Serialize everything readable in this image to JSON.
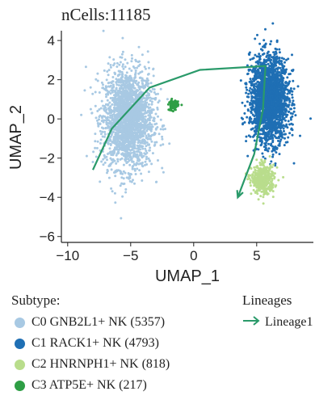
{
  "title": "nCells:11185",
  "chart_data": {
    "type": "scatter",
    "title": "nCells:11185",
    "xlabel": "UMAP_1",
    "ylabel": "UMAP_2",
    "xlim": [
      -10.5,
      9.5
    ],
    "ylim": [
      -6.3,
      4.5
    ],
    "xticks": [
      -10,
      -5,
      0,
      5
    ],
    "yticks": [
      -6,
      -4,
      -2,
      0,
      2,
      4
    ],
    "grid": false,
    "legend_position": "bottom",
    "clusters": [
      {
        "name": "C0 GNB2L1+ NK (5357)",
        "color": "#a8c9e3",
        "center": [
          -5.2,
          0.0
        ],
        "spread": [
          2.2,
          2.8
        ]
      },
      {
        "name": "C1 RACK1+ NK (4793)",
        "color": "#1f6fb4",
        "center": [
          6.0,
          1.0
        ],
        "spread": [
          1.7,
          2.4
        ]
      },
      {
        "name": "C2 HNRNPH1+ NK (818)",
        "color": "#b9dd8c",
        "center": [
          5.5,
          -3.1
        ],
        "spread": [
          1.0,
          0.8
        ]
      },
      {
        "name": "C3 ATP5E+ NK (217)",
        "color": "#2e9e45",
        "center": [
          -1.6,
          0.7
        ],
        "spread": [
          0.4,
          0.3
        ]
      }
    ],
    "lineages": [
      {
        "name": "Lineage1",
        "color": "#2a9a6a",
        "points": [
          [
            -8,
            -2.6
          ],
          [
            -6.5,
            -0.5
          ],
          [
            -3.5,
            1.6
          ],
          [
            0.5,
            2.5
          ],
          [
            5.7,
            2.7
          ],
          [
            5.5,
            0.5
          ],
          [
            4.8,
            -1.8
          ],
          [
            3.5,
            -4.0
          ]
        ]
      }
    ]
  },
  "legend": {
    "subtype_title": "Subtype:",
    "items": [
      {
        "label": "C0 GNB2L1+ NK (5357)",
        "color": "#a8c9e3"
      },
      {
        "label": "C1 RACK1+ NK (4793)",
        "color": "#1f6fb4"
      },
      {
        "label": "C2 HNRNPH1+ NK (818)",
        "color": "#b9dd8c"
      },
      {
        "label": "C3 ATP5E+ NK (217)",
        "color": "#2e9e45"
      }
    ],
    "lineage_title": "Lineages",
    "lineage_items": [
      {
        "label": "Lineage1",
        "color": "#2a9a6a"
      }
    ]
  }
}
